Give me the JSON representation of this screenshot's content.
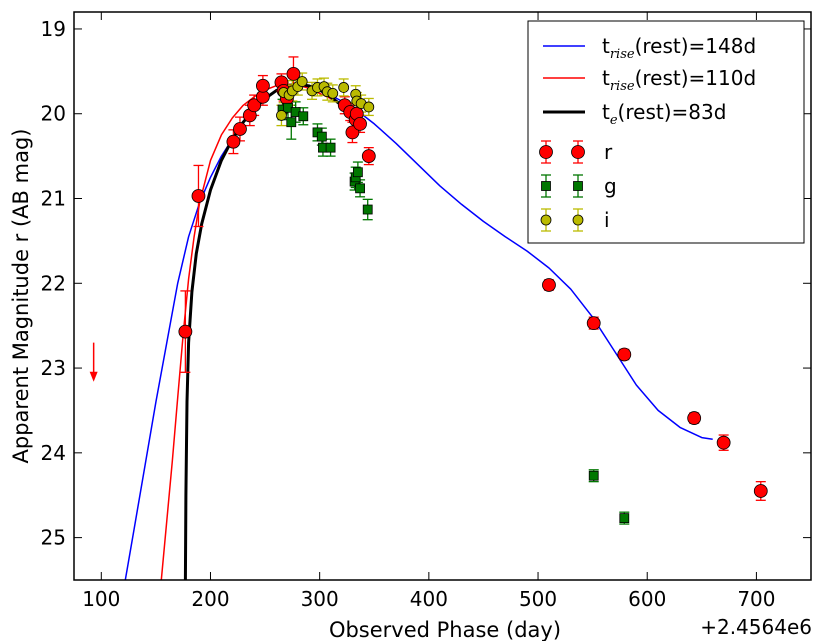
{
  "chart_data": {
    "type": "scatter",
    "title": "",
    "xlabel": "Observed Phase (day)",
    "ylabel": "Apparent Magnitude r (AB mag)",
    "x_offset_label": "+2.4564e6",
    "xlim": [
      75,
      750
    ],
    "ylim": [
      25.5,
      18.8
    ],
    "y_inverted": true,
    "xticks": [
      100,
      200,
      300,
      400,
      500,
      600,
      700
    ],
    "yticks": [
      19,
      20,
      21,
      22,
      23,
      24,
      25
    ],
    "legend_position": "top-right",
    "model_lines": [
      {
        "name": "rise148",
        "label_main": "t",
        "label_sub": "rise",
        "label_rest": "(rest)=148d",
        "color": "#0000ff",
        "width": 1.5,
        "points": [
          [
            122,
            25.5
          ],
          [
            130,
            24.9
          ],
          [
            140,
            24.15
          ],
          [
            150,
            23.4
          ],
          [
            160,
            22.7
          ],
          [
            170,
            22.0
          ],
          [
            180,
            21.45
          ],
          [
            190,
            21.05
          ],
          [
            200,
            20.75
          ],
          [
            210,
            20.5
          ],
          [
            220,
            20.3
          ],
          [
            230,
            20.1
          ],
          [
            240,
            19.95
          ],
          [
            250,
            19.82
          ],
          [
            260,
            19.72
          ],
          [
            270,
            19.66
          ],
          [
            280,
            19.65
          ],
          [
            290,
            19.68
          ],
          [
            300,
            19.72
          ],
          [
            310,
            19.78
          ],
          [
            320,
            19.85
          ],
          [
            330,
            19.93
          ],
          [
            340,
            20.02
          ],
          [
            350,
            20.12
          ],
          [
            370,
            20.35
          ],
          [
            390,
            20.6
          ],
          [
            410,
            20.85
          ],
          [
            430,
            21.07
          ],
          [
            450,
            21.27
          ],
          [
            470,
            21.45
          ],
          [
            490,
            21.62
          ],
          [
            510,
            21.82
          ],
          [
            530,
            22.07
          ],
          [
            550,
            22.4
          ],
          [
            570,
            22.8
          ],
          [
            590,
            23.2
          ],
          [
            610,
            23.5
          ],
          [
            630,
            23.7
          ],
          [
            650,
            23.82
          ],
          [
            660,
            23.84
          ]
        ]
      },
      {
        "name": "rise110",
        "label_main": "t",
        "label_sub": "rise",
        "label_rest": "(rest)=110d",
        "color": "#ff0000",
        "width": 1.5,
        "points": [
          [
            155,
            25.5
          ],
          [
            160,
            24.8
          ],
          [
            165,
            24.1
          ],
          [
            170,
            23.35
          ],
          [
            175,
            22.6
          ],
          [
            180,
            21.95
          ],
          [
            185,
            21.45
          ],
          [
            190,
            21.05
          ],
          [
            200,
            20.55
          ],
          [
            210,
            20.25
          ],
          [
            220,
            20.05
          ],
          [
            230,
            19.9
          ],
          [
            240,
            19.8
          ],
          [
            250,
            19.72
          ],
          [
            260,
            19.67
          ],
          [
            270,
            19.65
          ],
          [
            280,
            19.66
          ],
          [
            290,
            19.7
          ],
          [
            300,
            19.76
          ],
          [
            310,
            19.82
          ],
          [
            320,
            19.9
          ],
          [
            330,
            20.0
          ],
          [
            340,
            20.1
          ]
        ]
      },
      {
        "name": "e83",
        "label_main": "t",
        "label_sub": "e",
        "label_rest": "(rest)=83d",
        "color": "#000000",
        "width": 3,
        "points": [
          [
            177,
            25.5
          ],
          [
            177.5,
            24.5
          ],
          [
            178.5,
            23.4
          ],
          [
            180,
            22.7
          ],
          [
            183,
            22.1
          ],
          [
            187,
            21.65
          ],
          [
            192,
            21.3
          ],
          [
            200,
            20.9
          ],
          [
            210,
            20.55
          ],
          [
            220,
            20.3
          ],
          [
            230,
            20.1
          ],
          [
            240,
            19.95
          ],
          [
            250,
            19.82
          ],
          [
            260,
            19.73
          ],
          [
            270,
            19.67
          ],
          [
            280,
            19.65
          ],
          [
            290,
            19.67
          ],
          [
            300,
            19.72
          ],
          [
            310,
            19.8
          ],
          [
            320,
            19.9
          ],
          [
            330,
            20.0
          ],
          [
            340,
            20.1
          ]
        ]
      }
    ],
    "series": [
      {
        "name": "r",
        "marker": "circle",
        "color": "#ff0000",
        "points": [
          [
            177,
            22.57,
            0.48
          ],
          [
            189,
            20.97,
            0.36
          ],
          [
            221,
            20.33,
            0.14
          ],
          [
            227,
            20.18,
            0.14
          ],
          [
            236,
            20.02,
            0.12
          ],
          [
            240,
            19.9,
            0.12
          ],
          [
            248,
            19.8,
            0.1
          ],
          [
            248,
            19.67,
            0.12
          ],
          [
            265,
            19.63,
            0.1
          ],
          [
            267,
            19.73,
            0.12
          ],
          [
            270,
            19.82,
            0.15
          ],
          [
            276,
            19.53,
            0.2
          ],
          [
            323,
            19.9,
            0.1
          ],
          [
            328,
            19.98,
            0.1
          ],
          [
            330,
            20.22,
            0.12
          ],
          [
            333,
            20.07,
            0.1
          ],
          [
            334,
            20.0,
            0.1
          ],
          [
            337,
            20.12,
            0.1
          ],
          [
            345,
            20.5,
            0.1
          ],
          [
            510,
            22.02,
            0.06
          ],
          [
            551,
            22.47,
            0.07
          ],
          [
            579,
            22.84,
            0.06
          ],
          [
            643,
            23.59,
            0.06
          ],
          [
            670,
            23.88,
            0.09
          ],
          [
            704,
            24.45,
            0.11
          ]
        ]
      },
      {
        "name": "g",
        "marker": "square",
        "color": "#007700",
        "points": [
          [
            266,
            19.95,
            0.12
          ],
          [
            271,
            19.93,
            0.12
          ],
          [
            274,
            20.1,
            0.2
          ],
          [
            278,
            19.98,
            0.12
          ],
          [
            285,
            20.03,
            0.1
          ],
          [
            298,
            20.22,
            0.1
          ],
          [
            302,
            20.27,
            0.1
          ],
          [
            303,
            20.4,
            0.1
          ],
          [
            310,
            20.4,
            0.1
          ],
          [
            332,
            20.8,
            0.1
          ],
          [
            333,
            20.75,
            0.12
          ],
          [
            335,
            20.69,
            0.12
          ],
          [
            337,
            20.88,
            0.1
          ],
          [
            344,
            21.13,
            0.12
          ],
          [
            551,
            24.27,
            0.07
          ],
          [
            579,
            24.77,
            0.07
          ]
        ]
      },
      {
        "name": "i",
        "marker": "circle",
        "color": "#bbbb00",
        "points": [
          [
            265,
            20.02,
            0.12
          ],
          [
            267,
            19.75,
            0.12
          ],
          [
            272,
            19.78,
            0.12
          ],
          [
            275,
            19.73,
            0.12
          ],
          [
            280,
            19.68,
            0.1
          ],
          [
            284,
            19.62,
            0.1
          ],
          [
            293,
            19.73,
            0.1
          ],
          [
            298,
            19.69,
            0.1
          ],
          [
            304,
            19.68,
            0.1
          ],
          [
            307,
            19.74,
            0.1
          ],
          [
            312,
            19.76,
            0.1
          ],
          [
            322,
            19.69,
            0.1
          ],
          [
            333,
            19.77,
            0.1
          ],
          [
            334,
            19.85,
            0.1
          ],
          [
            338,
            19.88,
            0.1
          ],
          [
            345,
            19.92,
            0.1
          ]
        ]
      }
    ],
    "upper_limit": {
      "x": 93,
      "y": 22.7,
      "to_y": 23.15,
      "color": "#ff0000"
    }
  }
}
